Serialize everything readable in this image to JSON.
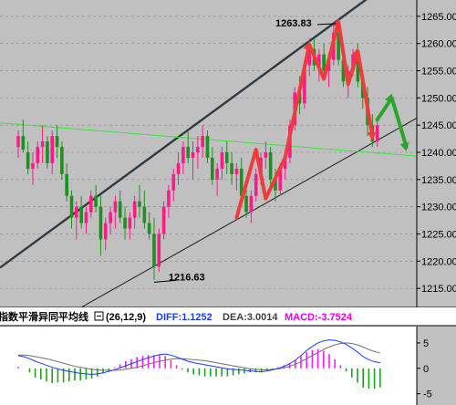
{
  "chart_data": {
    "type": "candlestick",
    "y_ticks": [
      1215,
      1220,
      1225,
      1230,
      1235,
      1240,
      1245,
      1250,
      1255,
      1260,
      1265
    ],
    "y_tick_labels": [
      "1215.00",
      "1220.00",
      "1225.00",
      "1230.00",
      "1235.00",
      "1240.00",
      "1245.00",
      "1250.00",
      "1255.00",
      "1260.00",
      "1265.00"
    ],
    "ylim": [
      1211.5,
      1268.0
    ],
    "annotations": [
      {
        "text": "1263.83",
        "value": 1263.83
      },
      {
        "text": "1216.63",
        "value": 1216.63
      }
    ],
    "candles": [
      [
        1241,
        1244,
        1239,
        1243
      ],
      [
        1243,
        1246,
        1240,
        1240.5
      ],
      [
        1240,
        1242,
        1236,
        1237
      ],
      [
        1237,
        1240,
        1234,
        1238
      ],
      [
        1238,
        1242,
        1237,
        1241
      ],
      [
        1241,
        1245,
        1238,
        1242
      ],
      [
        1242,
        1243,
        1237,
        1238
      ],
      [
        1238,
        1244,
        1236,
        1243
      ],
      [
        1243,
        1245,
        1239,
        1241
      ],
      [
        1241,
        1242,
        1235,
        1236
      ],
      [
        1236,
        1238,
        1231,
        1232
      ],
      [
        1232,
        1233,
        1226,
        1228
      ],
      [
        1228,
        1231,
        1224,
        1230
      ],
      [
        1230,
        1232,
        1226,
        1227
      ],
      [
        1227,
        1230,
        1225,
        1229
      ],
      [
        1229,
        1233,
        1228,
        1232
      ],
      [
        1232,
        1234,
        1229,
        1230
      ],
      [
        1230,
        1232,
        1221,
        1224
      ],
      [
        1224,
        1228,
        1222,
        1227
      ],
      [
        1227,
        1230,
        1225,
        1229
      ],
      [
        1229,
        1232,
        1226,
        1231
      ],
      [
        1231,
        1233,
        1227,
        1228
      ],
      [
        1228,
        1230,
        1224,
        1226
      ],
      [
        1226,
        1229,
        1224,
        1228
      ],
      [
        1228,
        1232,
        1226,
        1231
      ],
      [
        1231,
        1234,
        1228,
        1230
      ],
      [
        1230,
        1233,
        1226,
        1227
      ],
      [
        1227,
        1229,
        1224,
        1225
      ],
      [
        1225,
        1228,
        1216.6,
        1219
      ],
      [
        1219,
        1226,
        1218,
        1225
      ],
      [
        1225,
        1231,
        1224,
        1230
      ],
      [
        1230,
        1234,
        1228,
        1233
      ],
      [
        1233,
        1237,
        1231,
        1236
      ],
      [
        1236,
        1240,
        1234,
        1238
      ],
      [
        1238,
        1242,
        1236,
        1241
      ],
      [
        1241,
        1244,
        1238,
        1239
      ],
      [
        1239,
        1242,
        1235,
        1240
      ],
      [
        1240,
        1243,
        1237,
        1241
      ],
      [
        1241,
        1245,
        1239,
        1243
      ],
      [
        1243,
        1244,
        1238,
        1239
      ],
      [
        1239,
        1241,
        1234,
        1235
      ],
      [
        1235,
        1238,
        1232,
        1237
      ],
      [
        1237,
        1241,
        1235,
        1240
      ],
      [
        1240,
        1242,
        1236,
        1238
      ],
      [
        1238,
        1240,
        1234,
        1236
      ],
      [
        1236,
        1238,
        1233,
        1237
      ],
      [
        1237,
        1239,
        1231,
        1232
      ],
      [
        1232,
        1234,
        1228,
        1229
      ],
      [
        1229,
        1233,
        1227,
        1232
      ],
      [
        1232,
        1237,
        1231,
        1236
      ],
      [
        1236,
        1240,
        1234,
        1239
      ],
      [
        1239,
        1242,
        1237,
        1240
      ],
      [
        1240,
        1241,
        1234,
        1235
      ],
      [
        1235,
        1237,
        1231,
        1233
      ],
      [
        1233,
        1238,
        1232,
        1237
      ],
      [
        1237,
        1240,
        1235,
        1239
      ],
      [
        1239,
        1246,
        1238,
        1245
      ],
      [
        1245,
        1252,
        1244,
        1251
      ],
      [
        1251,
        1254,
        1247,
        1249
      ],
      [
        1249,
        1257,
        1248,
        1256
      ],
      [
        1256,
        1261,
        1254,
        1259
      ],
      [
        1259,
        1261,
        1255,
        1256
      ],
      [
        1256,
        1259,
        1253,
        1258
      ],
      [
        1258,
        1260,
        1254,
        1255
      ],
      [
        1255,
        1258,
        1252,
        1257
      ],
      [
        1257,
        1263.83,
        1256,
        1262
      ],
      [
        1262,
        1263,
        1256,
        1257
      ],
      [
        1257,
        1259,
        1252,
        1253
      ],
      [
        1253,
        1256,
        1250,
        1255
      ],
      [
        1255,
        1259,
        1254,
        1258
      ],
      [
        1258,
        1260,
        1252,
        1253
      ],
      [
        1253,
        1255,
        1248,
        1250
      ],
      [
        1250,
        1252,
        1243,
        1245
      ],
      [
        1245,
        1247,
        1241,
        1242
      ],
      [
        1242,
        1246,
        1241,
        1245
      ]
    ],
    "macd": {
      "indicator_label": "指数平滑异同平均线",
      "params": "(26,12,9)",
      "diff_label": "DIFF:1.1252",
      "dea_label": "DEA:3.0014",
      "macd_label": "MACD:-3.7524",
      "y_ticks": [
        5,
        0,
        -5
      ],
      "y_tick_labels": [
        "5",
        "0",
        "-5"
      ],
      "ylim": [
        -6.5,
        7.5
      ],
      "diff": [
        2.5,
        2.3,
        1.9,
        1.4,
        1.0,
        0.6,
        0.2,
        -0.1,
        -0.4,
        -0.6,
        -0.8,
        -1.0,
        -1.1,
        -1.2,
        -1.1,
        -0.9,
        -0.6,
        -0.3,
        0.1,
        0.5,
        0.9,
        1.3,
        1.7,
        2.1,
        2.4,
        2.7,
        2.8,
        2.6,
        2.2,
        1.8,
        1.4,
        1.1,
        0.9,
        0.7,
        0.5,
        0.3,
        0.1,
        -0.1,
        -0.2,
        -0.3,
        -0.4,
        -0.5,
        -0.6,
        -0.7,
        -0.5,
        -0.3,
        0.0,
        0.4,
        0.9,
        1.6,
        2.5,
        3.5,
        4.3,
        5.0,
        5.4,
        5.6,
        5.5,
        5.2,
        4.7,
        4.0,
        3.2,
        2.3,
        1.7,
        1.3,
        1.1
      ],
      "dea": [
        2.6,
        2.6,
        2.5,
        2.3,
        2.1,
        1.9,
        1.6,
        1.3,
        1.0,
        0.7,
        0.4,
        0.2,
        0.0,
        -0.2,
        -0.3,
        -0.4,
        -0.4,
        -0.4,
        -0.3,
        -0.2,
        0.0,
        0.2,
        0.5,
        0.8,
        1.1,
        1.4,
        1.6,
        1.8,
        1.9,
        1.9,
        1.8,
        1.7,
        1.6,
        1.5,
        1.3,
        1.1,
        0.9,
        0.7,
        0.5,
        0.3,
        0.1,
        -0.1,
        -0.2,
        -0.3,
        -0.3,
        -0.2,
        -0.1,
        0.1,
        0.4,
        0.8,
        1.3,
        1.9,
        2.5,
        3.1,
        3.7,
        4.2,
        4.6,
        4.9,
        5.0,
        4.9,
        4.6,
        4.2,
        3.7,
        3.3,
        3.0
      ],
      "hist": [
        0.3,
        0.0,
        -0.8,
        -1.8,
        -2.2,
        -2.6,
        -2.9,
        -2.8,
        -2.8,
        -2.6,
        -2.4,
        -2.4,
        -2.2,
        -2.0,
        -1.6,
        -1.0,
        -0.4,
        0.2,
        0.8,
        1.4,
        1.8,
        2.2,
        2.4,
        2.6,
        2.6,
        2.6,
        2.4,
        1.6,
        0.6,
        -0.2,
        -0.8,
        -1.2,
        -1.4,
        -1.6,
        -1.6,
        -1.6,
        -1.6,
        -1.6,
        -1.4,
        -1.2,
        -1.0,
        -0.8,
        -0.8,
        -0.8,
        -0.4,
        -0.2,
        0.2,
        0.6,
        1.0,
        1.6,
        2.4,
        3.2,
        3.6,
        3.8,
        3.4,
        2.8,
        1.8,
        0.6,
        -0.6,
        -1.8,
        -2.8,
        -3.8,
        -4.0,
        -4.0,
        -3.75
      ]
    }
  }
}
